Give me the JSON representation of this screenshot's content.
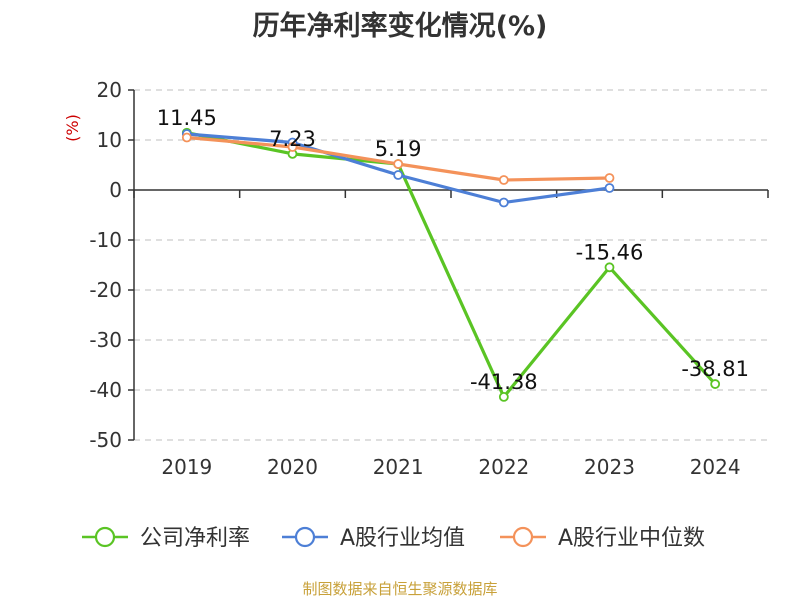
{
  "chart_data": {
    "type": "line",
    "title": "历年净利率变化情况(%)",
    "ylabel": "(%)",
    "xlabel": "",
    "categories": [
      "2019",
      "2020",
      "2021",
      "2022",
      "2023",
      "2024"
    ],
    "ylim": [
      -50,
      20
    ],
    "yticks": [
      20,
      10,
      0,
      -10,
      -20,
      -30,
      -40,
      -50
    ],
    "grid": true,
    "legend_position": "bottom",
    "series": [
      {
        "name": "公司净利率",
        "color": "#5ac424",
        "values": [
          11.45,
          7.23,
          5.19,
          -41.38,
          -15.46,
          -38.81
        ],
        "labels": [
          "11.45",
          "7.23",
          "5.19",
          "-41.38",
          "-15.46",
          "-38.81"
        ]
      },
      {
        "name": "A股行业均值",
        "color": "#4d7fd6",
        "values": [
          11.2,
          9.5,
          3.0,
          -2.5,
          0.4,
          null
        ]
      },
      {
        "name": "A股行业中位数",
        "color": "#f4925a",
        "values": [
          10.5,
          8.6,
          5.2,
          2.0,
          2.4,
          null
        ]
      }
    ]
  },
  "footer": {
    "source": "制图数据来自恒生聚源数据库"
  }
}
